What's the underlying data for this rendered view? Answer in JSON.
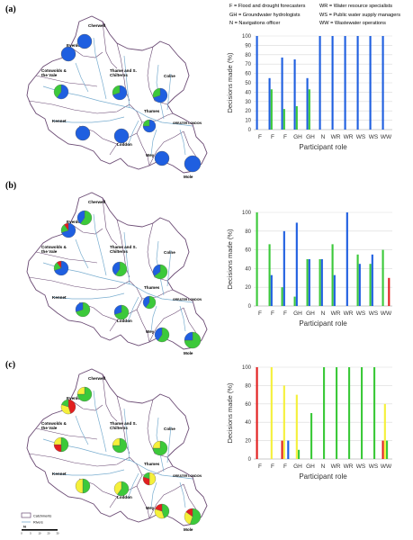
{
  "panels": [
    "(a)",
    "(b)",
    "(c)"
  ],
  "legend": [
    [
      "F = Flood and drought forecasters",
      "WR = Water resource specialists"
    ],
    [
      "GH = Groundwater hydrologists",
      "WS = Public water supply managers"
    ],
    [
      "N = Navigations officer",
      "WW = Wastewater operations"
    ]
  ],
  "map_labels": {
    "cherwell": "Cherwell",
    "evenlode": "Evenlode",
    "cotswolds": "Cotswolds &\nthe Vale",
    "thame": "Thame and S.\nChilterns",
    "colne": "Colne",
    "kennet": "Kennet",
    "thames": "Thames",
    "loddon": "Loddon",
    "wey": "Wey",
    "mole": "Mole",
    "london": "GREATER LONDON"
  },
  "map_legend": {
    "catchments": "Catchments",
    "rivers": "Rivers"
  },
  "scale_bar": {
    "north": "N",
    "ticks": [
      "0",
      "5",
      "10",
      "20",
      "30"
    ]
  },
  "colors": {
    "blue": "#1f5fe0",
    "green": "#3cc93a",
    "yellow": "#f5f03a",
    "red": "#e21f1f",
    "river": "#7aaed0",
    "catch_fill": "#ffffff",
    "catch_line": "#6b4b74"
  },
  "map_pies": [
    [
      {
        "k": "cherwell",
        "s": [
          [
            "blue",
            1
          ]
        ]
      },
      {
        "k": "evenlode",
        "s": [
          [
            "blue",
            1
          ]
        ]
      },
      {
        "k": "cotswolds",
        "s": [
          [
            "blue",
            0.6
          ],
          [
            "green",
            0.4
          ]
        ]
      },
      {
        "k": "thame",
        "s": [
          [
            "blue",
            0.7
          ],
          [
            "green",
            0.3
          ]
        ]
      },
      {
        "k": "colne",
        "s": [
          [
            "blue",
            0.7
          ],
          [
            "green",
            0.3
          ]
        ]
      },
      {
        "k": "kennet",
        "s": [
          [
            "blue",
            1
          ]
        ]
      },
      {
        "k": "thames",
        "s": [
          [
            "blue",
            0.75
          ],
          [
            "green",
            0.25
          ]
        ]
      },
      {
        "k": "loddon",
        "s": [
          [
            "blue",
            1
          ]
        ]
      },
      {
        "k": "wey",
        "s": [
          [
            "blue",
            1
          ]
        ]
      },
      {
        "k": "mole",
        "s": [
          [
            "blue",
            1
          ]
        ]
      }
    ],
    [
      {
        "k": "cherwell",
        "s": [
          [
            "green",
            0.6
          ],
          [
            "blue",
            0.4
          ]
        ]
      },
      {
        "k": "evenlode",
        "s": [
          [
            "blue",
            0.7
          ],
          [
            "green",
            0.2
          ],
          [
            "red",
            0.1
          ]
        ]
      },
      {
        "k": "cotswolds",
        "s": [
          [
            "blue",
            0.7
          ],
          [
            "green",
            0.2
          ],
          [
            "red",
            0.1
          ]
        ]
      },
      {
        "k": "thame",
        "s": [
          [
            "green",
            0.6
          ],
          [
            "blue",
            0.4
          ]
        ]
      },
      {
        "k": "colne",
        "s": [
          [
            "green",
            0.65
          ],
          [
            "blue",
            0.35
          ]
        ]
      },
      {
        "k": "kennet",
        "s": [
          [
            "green",
            0.7
          ],
          [
            "blue",
            0.3
          ]
        ]
      },
      {
        "k": "thames",
        "s": [
          [
            "green",
            0.6
          ],
          [
            "blue",
            0.4
          ]
        ]
      },
      {
        "k": "loddon",
        "s": [
          [
            "green",
            0.7
          ],
          [
            "blue",
            0.3
          ]
        ]
      },
      {
        "k": "wey",
        "s": [
          [
            "green",
            0.6
          ],
          [
            "blue",
            0.4
          ]
        ]
      },
      {
        "k": "mole",
        "s": [
          [
            "green",
            0.75
          ],
          [
            "blue",
            0.25
          ]
        ]
      }
    ],
    [
      {
        "k": "cherwell",
        "s": [
          [
            "green",
            0.75
          ],
          [
            "yellow",
            0.25
          ]
        ]
      },
      {
        "k": "evenlode",
        "s": [
          [
            "red",
            0.45
          ],
          [
            "yellow",
            0.35
          ],
          [
            "green",
            0.2
          ]
        ]
      },
      {
        "k": "cotswolds",
        "s": [
          [
            "green",
            0.5
          ],
          [
            "red",
            0.25
          ],
          [
            "yellow",
            0.25
          ]
        ]
      },
      {
        "k": "thame",
        "s": [
          [
            "green",
            0.75
          ],
          [
            "yellow",
            0.25
          ]
        ]
      },
      {
        "k": "colne",
        "s": [
          [
            "green",
            0.75
          ],
          [
            "yellow",
            0.25
          ]
        ]
      },
      {
        "k": "kennet",
        "s": [
          [
            "green",
            0.5
          ],
          [
            "yellow",
            0.5
          ]
        ]
      },
      {
        "k": "thames",
        "s": [
          [
            "yellow",
            0.5
          ],
          [
            "red",
            0.3
          ],
          [
            "green",
            0.2
          ]
        ]
      },
      {
        "k": "loddon",
        "s": [
          [
            "green",
            0.6
          ],
          [
            "yellow",
            0.4
          ]
        ]
      },
      {
        "k": "wey",
        "s": [
          [
            "green",
            0.45
          ],
          [
            "yellow",
            0.35
          ],
          [
            "red",
            0.2
          ]
        ]
      },
      {
        "k": "mole",
        "s": [
          [
            "green",
            0.55
          ],
          [
            "yellow",
            0.3
          ],
          [
            "red",
            0.15
          ]
        ]
      }
    ]
  ],
  "chart_data": [
    {
      "type": "bar",
      "categories": [
        "F",
        "F",
        "F",
        "GH",
        "GH",
        "N",
        "WR",
        "WR",
        "WS",
        "WS",
        "WW"
      ],
      "series": [
        {
          "color": "blue",
          "values": [
            100,
            55,
            77,
            75,
            55,
            100,
            100,
            100,
            100,
            100,
            100
          ]
        },
        {
          "color": "green",
          "values": [
            0,
            43,
            22,
            25,
            43,
            0,
            0,
            0,
            0,
            0,
            0
          ]
        },
        {
          "color": "yellow",
          "values": [
            0,
            0,
            0,
            0,
            0,
            0,
            0,
            0,
            0,
            0,
            0
          ]
        },
        {
          "color": "red",
          "values": [
            0,
            0,
            0,
            0,
            0,
            0,
            0,
            0,
            0,
            0,
            0
          ]
        }
      ],
      "xlabel": "Participant role",
      "ylabel": "Decisions made (%)",
      "ylim": [
        0,
        100
      ],
      "yticks": [
        0,
        10,
        20,
        30,
        40,
        50,
        60,
        70,
        80,
        90,
        100
      ]
    },
    {
      "type": "bar",
      "categories": [
        "F",
        "F",
        "F",
        "GH",
        "GH",
        "N",
        "WR",
        "WR",
        "WS",
        "WS",
        "WW"
      ],
      "series": [
        {
          "color": "green",
          "values": [
            100,
            66,
            20,
            10,
            50,
            50,
            66,
            0,
            55,
            45,
            60
          ]
        },
        {
          "color": "blue",
          "values": [
            0,
            33,
            80,
            89,
            50,
            50,
            33,
            100,
            45,
            55,
            0
          ]
        },
        {
          "color": "yellow",
          "values": [
            0,
            0,
            0,
            0,
            0,
            0,
            0,
            0,
            0,
            0,
            0
          ]
        },
        {
          "color": "red",
          "values": [
            0,
            0,
            0,
            0,
            0,
            0,
            0,
            0,
            0,
            0,
            30
          ]
        }
      ],
      "xlabel": "Participant role",
      "ylabel": "Decisions made (%)",
      "ylim": [
        0,
        100
      ],
      "yticks": [
        0,
        20,
        40,
        60,
        80,
        100
      ]
    },
    {
      "type": "bar",
      "categories": [
        "F",
        "F",
        "F",
        "GH",
        "GH",
        "N",
        "WR",
        "WR",
        "WS",
        "WS",
        "WW"
      ],
      "series": [
        {
          "color": "red",
          "values": [
            100,
            0,
            20,
            0,
            0,
            0,
            0,
            0,
            0,
            0,
            20
          ]
        },
        {
          "color": "yellow",
          "values": [
            0,
            100,
            80,
            70,
            0,
            0,
            0,
            0,
            0,
            0,
            60
          ]
        },
        {
          "color": "green",
          "values": [
            0,
            0,
            0,
            10,
            50,
            100,
            100,
            100,
            100,
            100,
            20
          ]
        },
        {
          "color": "blue",
          "values": [
            0,
            0,
            20,
            0,
            0,
            0,
            0,
            0,
            0,
            0,
            0
          ]
        }
      ],
      "xlabel": "Participant role",
      "ylabel": "Decisions made (%)",
      "ylim": [
        0,
        100
      ],
      "yticks": [
        0,
        20,
        40,
        60,
        80,
        100
      ]
    }
  ]
}
